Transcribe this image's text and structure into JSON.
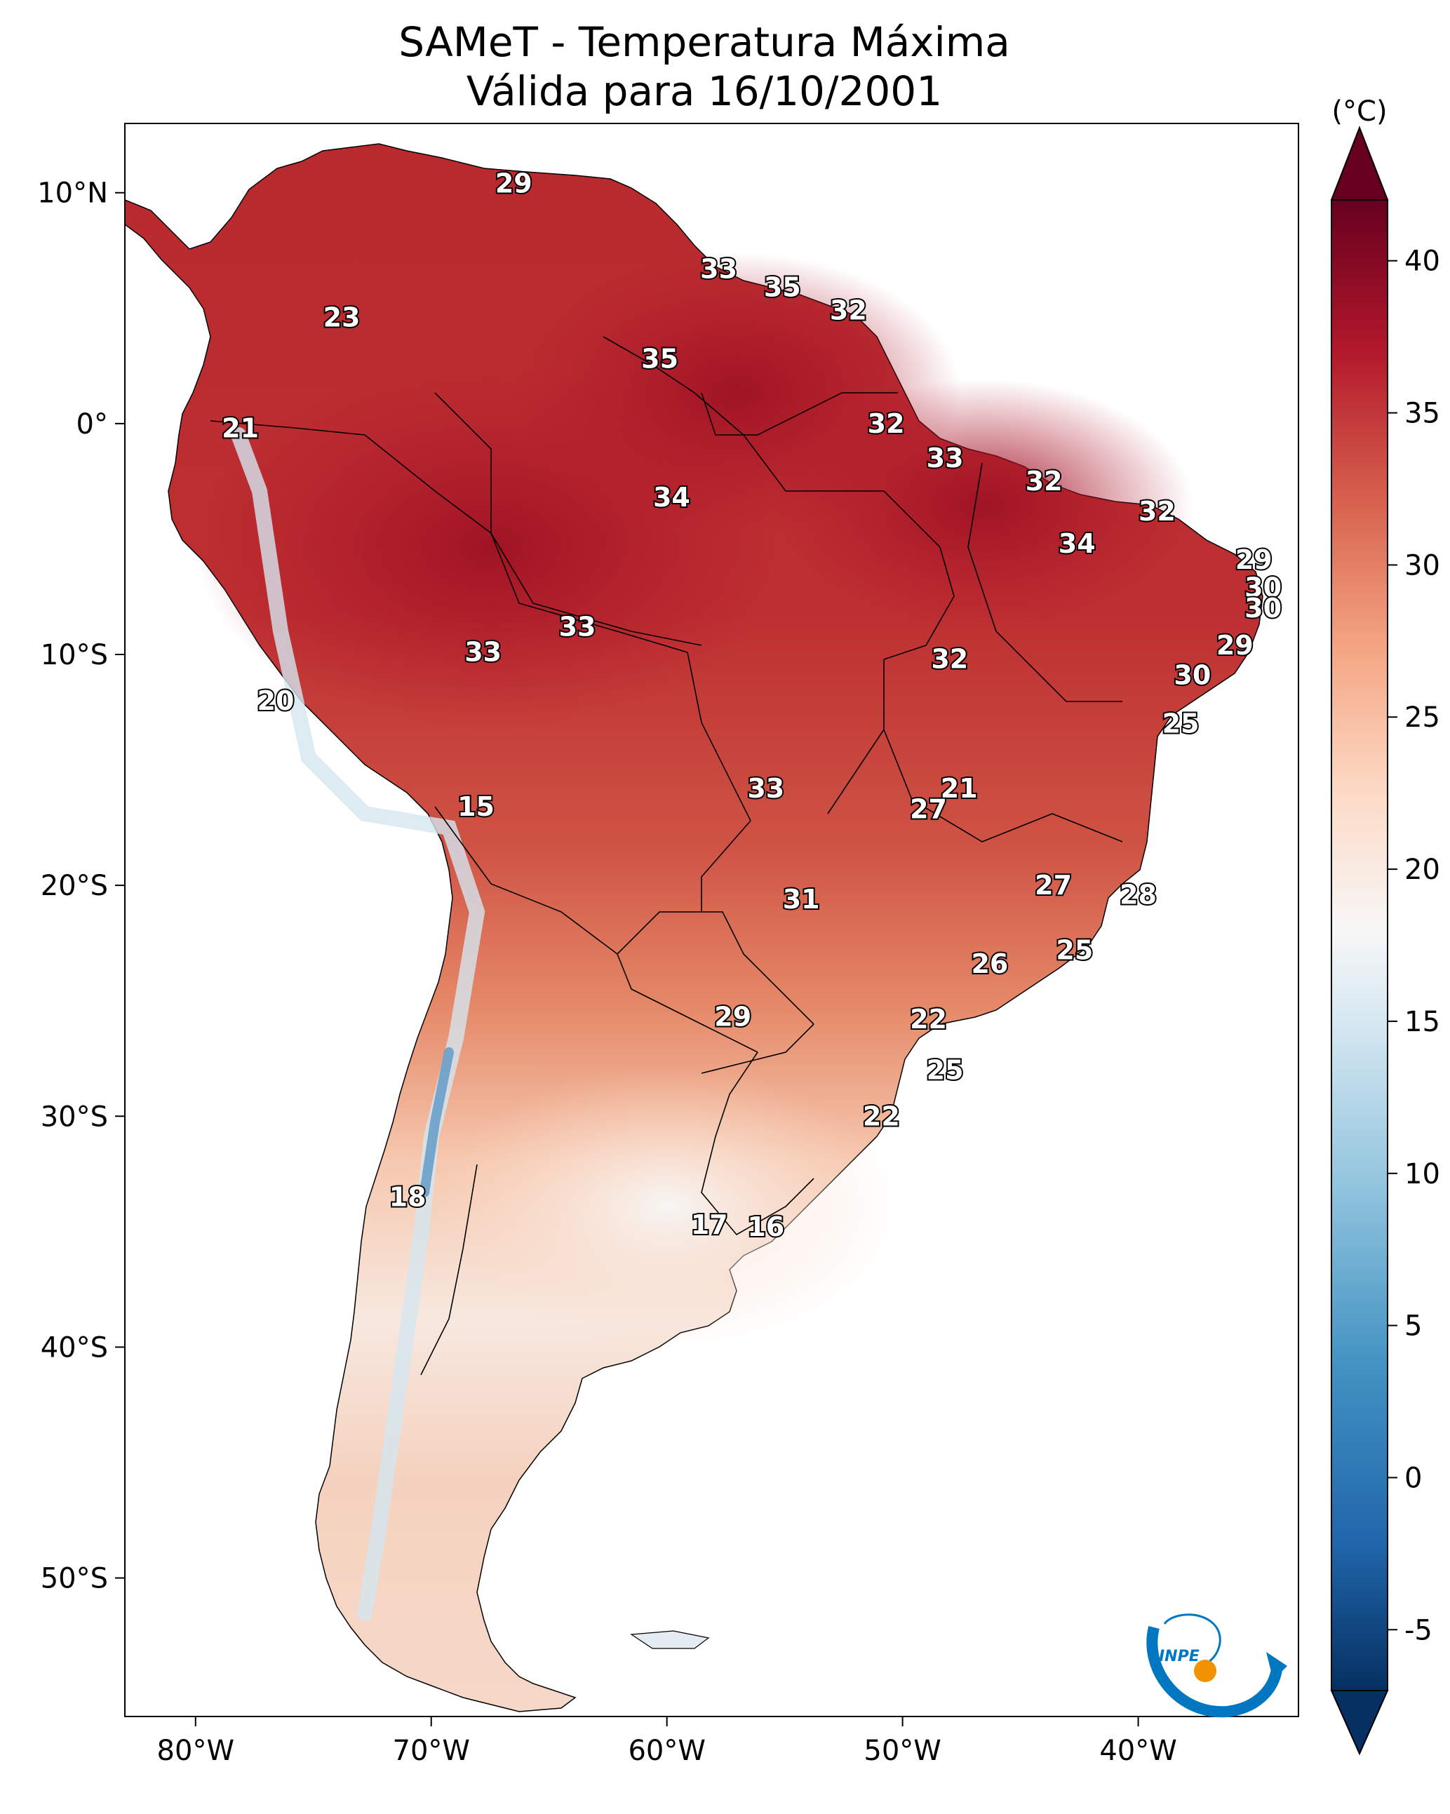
{
  "title": {
    "line1": "SAMeT - Temperatura Máxima",
    "line2": "Válida para 16/10/2001"
  },
  "map": {
    "lon_range": [
      -83,
      -33.2
    ],
    "lat_range": [
      -56,
      13
    ],
    "x_ticks": [
      {
        "lon": -80,
        "label": "80°W"
      },
      {
        "lon": -70,
        "label": "70°W"
      },
      {
        "lon": -60,
        "label": "60°W"
      },
      {
        "lon": -50,
        "label": "50°W"
      },
      {
        "lon": -40,
        "label": "40°W"
      }
    ],
    "y_ticks": [
      {
        "lat": 10,
        "label": "10°N"
      },
      {
        "lat": 0,
        "label": "0°"
      },
      {
        "lat": -10,
        "label": "10°S"
      },
      {
        "lat": -20,
        "label": "20°S"
      },
      {
        "lat": -30,
        "label": "30°S"
      },
      {
        "lat": -40,
        "label": "40°S"
      },
      {
        "lat": -50,
        "label": "50°S"
      }
    ],
    "station_labels": [
      {
        "text": "29",
        "lon": -66.5,
        "lat": 10.4
      },
      {
        "text": "33",
        "lon": -57.8,
        "lat": 6.7
      },
      {
        "text": "35",
        "lon": -55.1,
        "lat": 5.9
      },
      {
        "text": "32",
        "lon": -52.3,
        "lat": 4.9
      },
      {
        "text": "23",
        "lon": -73.8,
        "lat": 4.6
      },
      {
        "text": "35",
        "lon": -60.3,
        "lat": 2.8
      },
      {
        "text": "21",
        "lon": -78.1,
        "lat": -0.2
      },
      {
        "text": "32",
        "lon": -50.7,
        "lat": 0.0
      },
      {
        "text": "33",
        "lon": -48.2,
        "lat": -1.5
      },
      {
        "text": "32",
        "lon": -44.0,
        "lat": -2.5
      },
      {
        "text": "34",
        "lon": -59.8,
        "lat": -3.2
      },
      {
        "text": "32",
        "lon": -39.2,
        "lat": -3.8
      },
      {
        "text": "34",
        "lon": -42.6,
        "lat": -5.2
      },
      {
        "text": "29",
        "lon": -35.1,
        "lat": -5.9
      },
      {
        "text": "30",
        "lon": -34.7,
        "lat": -7.1
      },
      {
        "text": "30",
        "lon": -34.7,
        "lat": -8.0
      },
      {
        "text": "33",
        "lon": -63.8,
        "lat": -8.8
      },
      {
        "text": "33",
        "lon": -67.8,
        "lat": -9.9
      },
      {
        "text": "29",
        "lon": -35.9,
        "lat": -9.6
      },
      {
        "text": "32",
        "lon": -48.0,
        "lat": -10.2
      },
      {
        "text": "30",
        "lon": -37.7,
        "lat": -10.9
      },
      {
        "text": "20",
        "lon": -76.6,
        "lat": -12.0
      },
      {
        "text": "25",
        "lon": -38.2,
        "lat": -13.0
      },
      {
        "text": "21",
        "lon": -47.6,
        "lat": -15.8
      },
      {
        "text": "33",
        "lon": -55.8,
        "lat": -15.8
      },
      {
        "text": "15",
        "lon": -68.1,
        "lat": -16.6
      },
      {
        "text": "27",
        "lon": -48.9,
        "lat": -16.7
      },
      {
        "text": "27",
        "lon": -43.6,
        "lat": -20.0
      },
      {
        "text": "28",
        "lon": -40.0,
        "lat": -20.4
      },
      {
        "text": "31",
        "lon": -54.3,
        "lat": -20.6
      },
      {
        "text": "25",
        "lon": -42.7,
        "lat": -22.8
      },
      {
        "text": "26",
        "lon": -46.3,
        "lat": -23.4
      },
      {
        "text": "29",
        "lon": -57.2,
        "lat": -25.7
      },
      {
        "text": "22",
        "lon": -48.9,
        "lat": -25.8
      },
      {
        "text": "25",
        "lon": -48.2,
        "lat": -28.0
      },
      {
        "text": "22",
        "lon": -50.9,
        "lat": -30.0
      },
      {
        "text": "18",
        "lon": -71.0,
        "lat": -33.5
      },
      {
        "text": "17",
        "lon": -58.2,
        "lat": -34.7
      },
      {
        "text": "16",
        "lon": -55.8,
        "lat": -34.8
      }
    ]
  },
  "colorbar": {
    "unit": "(°C)",
    "range": [
      -7,
      42
    ],
    "ticks": [
      {
        "value": 40,
        "label": "40"
      },
      {
        "value": 35,
        "label": "35"
      },
      {
        "value": 30,
        "label": "30"
      },
      {
        "value": 25,
        "label": "25"
      },
      {
        "value": 20,
        "label": "20"
      },
      {
        "value": 15,
        "label": "15"
      },
      {
        "value": 10,
        "label": "10"
      },
      {
        "value": 5,
        "label": "5"
      },
      {
        "value": 0,
        "label": "0"
      },
      {
        "value": -5,
        "label": "-5"
      }
    ],
    "colors": [
      "#053061",
      "#2166ac",
      "#4393c3",
      "#92c5de",
      "#d1e5f0",
      "#f7f7f7",
      "#fddbc7",
      "#f4a582",
      "#d6604d",
      "#b2182b",
      "#67001f"
    ]
  },
  "logo": {
    "text": "INPE",
    "colors": {
      "blue": "#0077c0",
      "orange": "#f39200"
    }
  }
}
